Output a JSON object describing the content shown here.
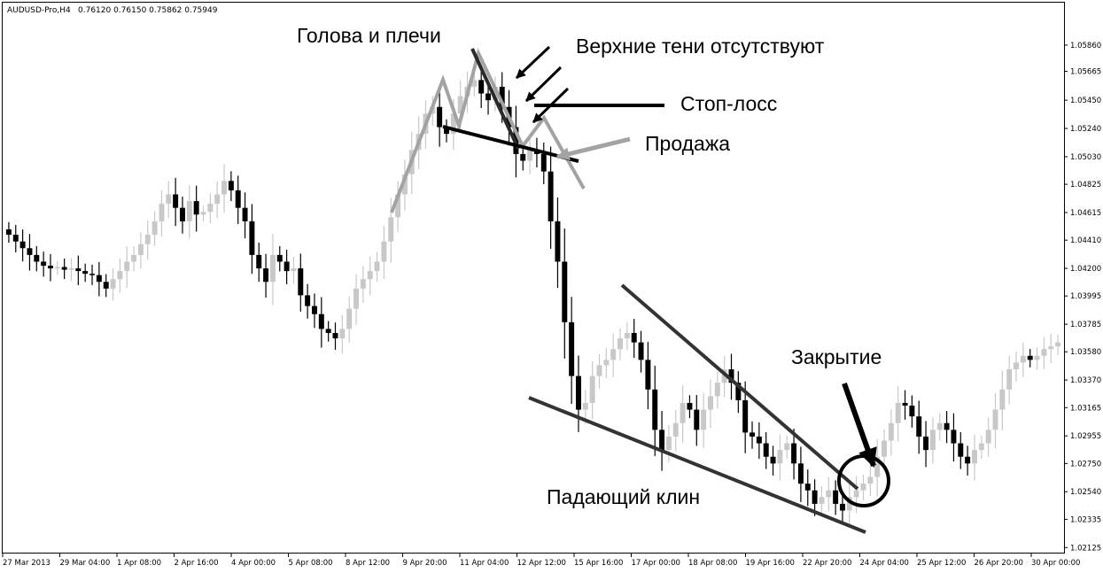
{
  "header": {
    "symbol": "AUDUSD-Pro,H4",
    "ohlc": "0.76120 0.76150 0.75862 0.75949"
  },
  "chart_data": {
    "type": "candlestick",
    "timeframe": "H4",
    "ylim": [
      1.0214,
      1.0605
    ],
    "yticks": [
      "1.05860",
      "1.05665",
      "1.05450",
      "1.05240",
      "1.05030",
      "1.04825",
      "1.04615",
      "1.04410",
      "1.04200",
      "1.03995",
      "1.03785",
      "1.03580",
      "1.03370",
      "1.03165",
      "1.02955",
      "1.02750",
      "1.02540",
      "1.02335",
      "1.02125"
    ],
    "xticks": [
      "27 Mar 2013",
      "29 Mar 04:00",
      "1 Apr 08:00",
      "2 Apr 16:00",
      "4 Apr 00:00",
      "5 Apr 08:00",
      "8 Apr 12:00",
      "9 Apr 20:00",
      "11 Apr 04:00",
      "12 Apr 12:00",
      "15 Apr 16:00",
      "17 Apr 00:00",
      "18 Apr 08:00",
      "19 Apr 16:00",
      "22 Apr 20:00",
      "24 Apr 04:00",
      "25 Apr 12:00",
      "26 Apr 20:00",
      "30 Apr 00:00"
    ],
    "grid": false,
    "series": [
      {
        "values": [
          1.0445,
          1.044,
          1.0435,
          1.043,
          1.0425,
          1.0422,
          1.042,
          1.0421,
          1.0419,
          1.042,
          1.0418,
          1.0416,
          1.0415,
          1.041,
          1.0405,
          1.0412,
          1.0418,
          1.0425,
          1.043,
          1.0438,
          1.0445,
          1.0455,
          1.0468,
          1.0475,
          1.0465,
          1.0455,
          1.047,
          1.046,
          1.0462,
          1.0468,
          1.0475,
          1.0485,
          1.0478,
          1.0465,
          1.0455,
          1.043,
          1.042,
          1.041,
          1.043,
          1.0425,
          1.0418,
          1.042,
          1.04,
          1.0392,
          1.0386,
          1.0375,
          1.0372,
          1.0368,
          1.0375,
          1.039,
          1.0405,
          1.0412,
          1.0418,
          1.0425,
          1.044,
          1.0458,
          1.0475,
          1.049,
          1.0508,
          1.052,
          1.0535,
          1.054,
          1.0525,
          1.052,
          1.0535,
          1.0548,
          1.0555,
          1.056,
          1.055,
          1.0545,
          1.0555,
          1.054,
          1.0525,
          1.0505,
          1.05,
          1.0508,
          1.0505,
          1.0492,
          1.0455,
          1.0425,
          1.038,
          1.034,
          1.0315,
          1.032,
          1.034,
          1.0348,
          1.0352,
          1.036,
          1.0368,
          1.0372,
          1.0365,
          1.0352,
          1.033,
          1.03,
          1.0285,
          1.0295,
          1.0305,
          1.032,
          1.0315,
          1.03,
          1.0315,
          1.0325,
          1.0335,
          1.0345,
          1.0335,
          1.0322,
          1.0298,
          1.0295,
          1.029,
          1.028,
          1.0275,
          1.0285,
          1.029,
          1.0275,
          1.026,
          1.0255,
          1.0245,
          1.025,
          1.0255,
          1.0245,
          1.024,
          1.025,
          1.0255,
          1.026,
          1.0265,
          1.028,
          1.0292,
          1.0305,
          1.032,
          1.0318,
          1.031,
          1.0295,
          1.0285,
          1.03,
          1.0305,
          1.03,
          1.029,
          1.028,
          1.0275,
          1.0285,
          1.029,
          1.03,
          1.0315,
          1.033,
          1.0345,
          1.035,
          1.0355,
          1.0352,
          1.0355,
          1.036,
          1.0362,
          1.0365
        ]
      }
    ]
  },
  "annotations": {
    "head_shoulders": "Голова и плечи",
    "no_upper_shadows": "Верхние тени отсутствуют",
    "stop_loss": "Стоп-лосс",
    "sell": "Продажа",
    "falling_wedge": "Падающий клин",
    "close": "Закрытие"
  },
  "colors": {
    "bull": "#c8c8c8",
    "bear": "#000000",
    "line_dark": "#333333",
    "line_grey": "#a3a3a3"
  }
}
